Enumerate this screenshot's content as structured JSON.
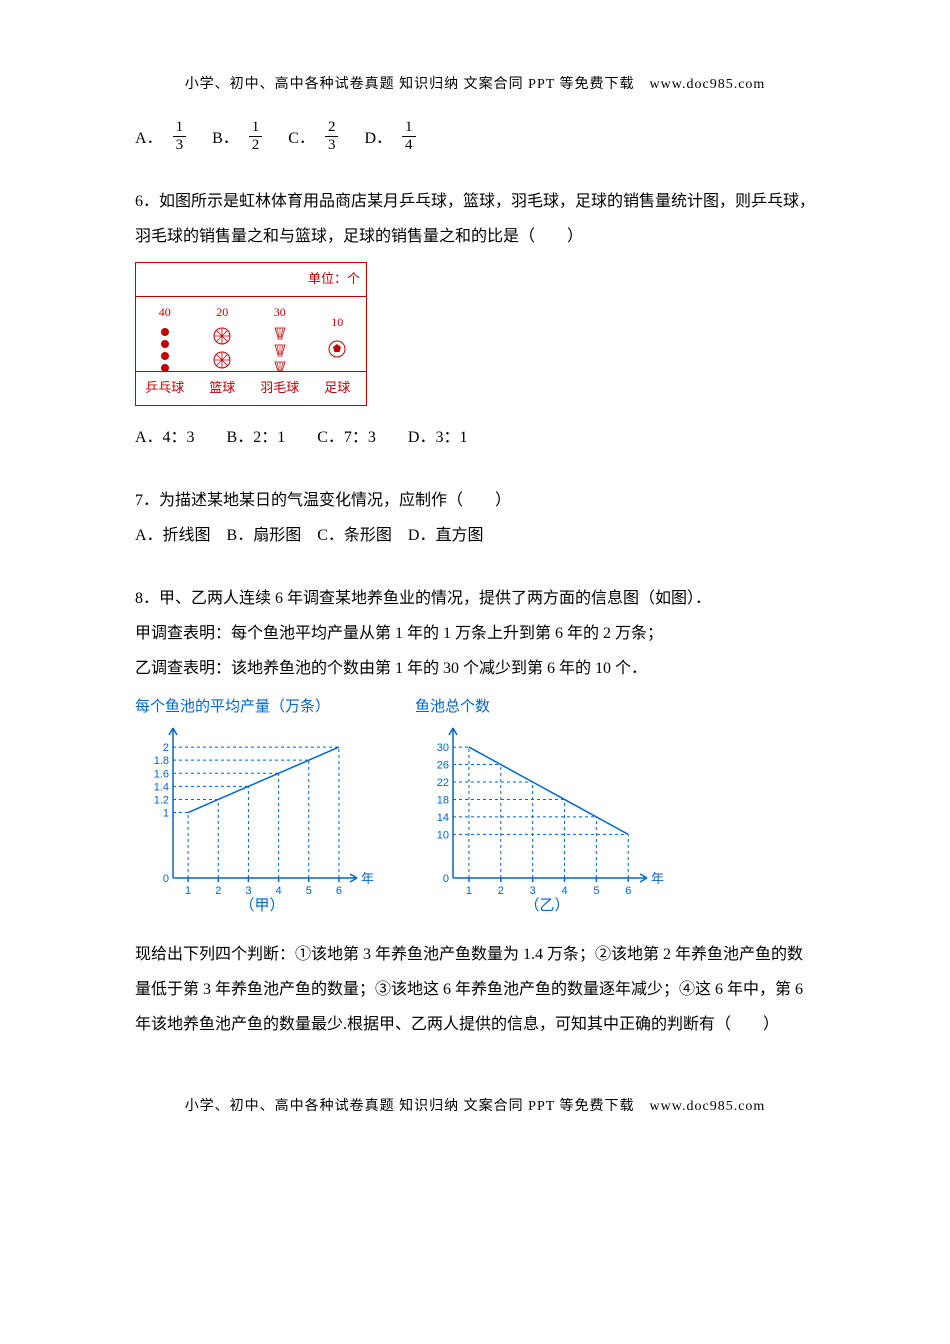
{
  "header": "小学、初中、高中各种试卷真题 知识归纳 文案合同 PPT 等免费下载　www.doc985.com",
  "footer": "小学、初中、高中各种试卷真题 知识归纳 文案合同 PPT 等免费下载　www.doc985.com",
  "q5_options": {
    "A": "A．",
    "A_num": "1",
    "A_den": "3",
    "B": "B．",
    "B_num": "1",
    "B_den": "2",
    "C": "C．",
    "C_num": "2",
    "C_den": "3",
    "D": "D．",
    "D_num": "1",
    "D_den": "4"
  },
  "q6": {
    "text": "6．如图所示是虹林体育用品商店某月乒乓球，篮球，羽毛球，足球的销售量统计图，则乒乓球，羽毛球的销售量之和与篮球，足球的销售量之和的比是（　　）",
    "unit": "单位：个",
    "cols": [
      {
        "label": "乒乓球",
        "count": "40"
      },
      {
        "label": "篮球",
        "count": "20"
      },
      {
        "label": "羽毛球",
        "count": "30"
      },
      {
        "label": "足球",
        "count": "10"
      }
    ],
    "options": "A．4：3　　B．2：1　　C．7：3　　D．3：1"
  },
  "q7": {
    "text": "7．为描述某地某日的气温变化情况，应制作（　　）",
    "options": "A．折线图　B．扇形图　C．条形图　D．直方图"
  },
  "q8": {
    "text1": "8．甲、乙两人连续 6 年调查某地养鱼业的情况，提供了两方面的信息图（如图）．",
    "text2": "甲调查表明：每个鱼池平均产量从第 1 年的 1 万条上升到第 6 年的 2 万条；",
    "text3": "乙调查表明：该地养鱼池的个数由第 1 年的 30 个减少到第 6 年的 10 个．",
    "chart1_title": "每个鱼池的平均产量（万条）",
    "chart2_title": "鱼池总个数",
    "chart1": {
      "type": "line",
      "x": [
        1,
        2,
        3,
        4,
        5,
        6
      ],
      "y": [
        1,
        1.2,
        1.4,
        1.6,
        1.8,
        2
      ],
      "yticks": [
        "0",
        "1",
        "1.2",
        "1.4",
        "1.6",
        "1.8",
        "2"
      ],
      "ytick_vals": [
        0,
        1,
        1.2,
        1.4,
        1.6,
        1.8,
        2
      ],
      "xlabel": "年",
      "ylim": [
        0,
        2.2
      ],
      "caption": "（甲）",
      "color": "#0066cc"
    },
    "chart2": {
      "type": "line",
      "x": [
        1,
        2,
        3,
        4,
        5,
        6
      ],
      "y": [
        30,
        26,
        22,
        18,
        14,
        10
      ],
      "yticks": [
        "0",
        "10",
        "14",
        "18",
        "22",
        "26",
        "30"
      ],
      "ytick_vals": [
        0,
        10,
        14,
        18,
        22,
        26,
        30
      ],
      "xlabel": "年",
      "ylim": [
        0,
        33
      ],
      "caption": "（乙）",
      "color": "#0066cc"
    },
    "after1": "现给出下列四个判断：①该地第 3 年养鱼池产鱼数量为 1.4 万条；②该地第 2 年养鱼池产鱼的数量低于第 3 年养鱼池产鱼的数量；③该地这 6 年养鱼池产鱼的数量逐年减少；④这 6 年中，第 6 年该地养鱼池产鱼的数量最少.根据甲、乙两人提供的信息，可知其中正确的判断有（　　）"
  }
}
